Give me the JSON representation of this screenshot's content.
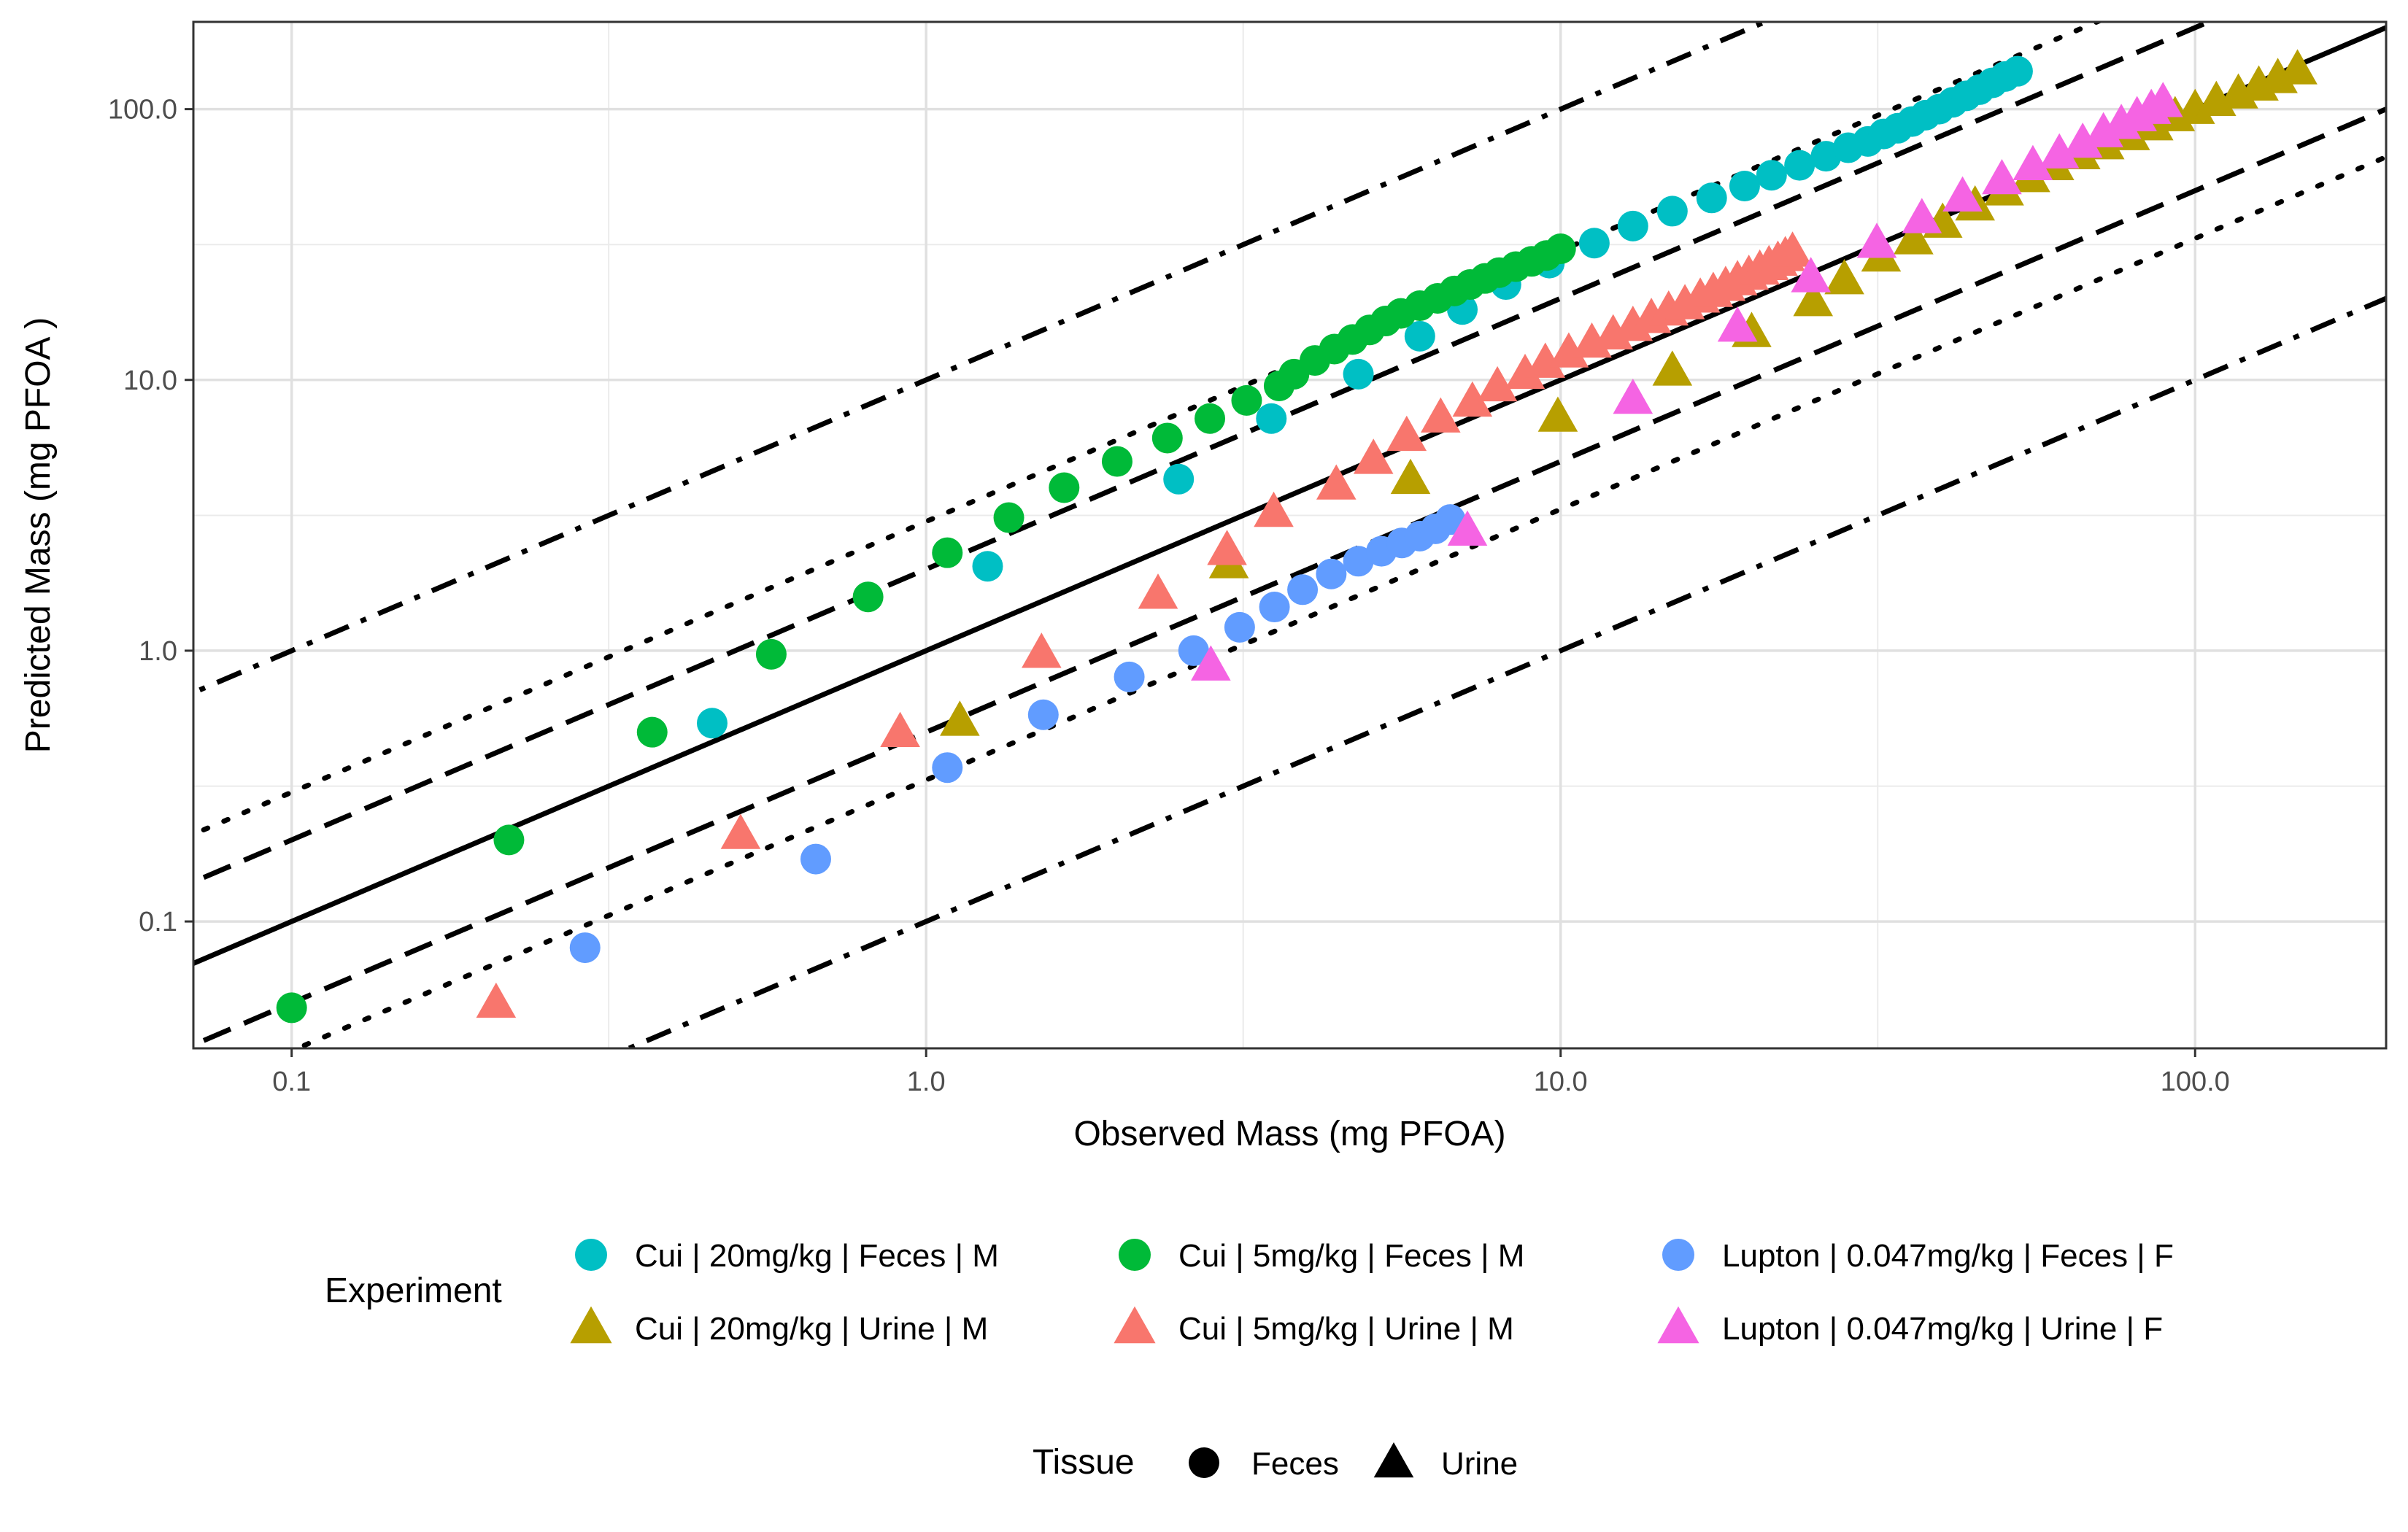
{
  "chart_data": {
    "type": "scatter",
    "xlabel": "Observed Mass (mg PFOA)",
    "ylabel": "Predicted Mass (mg PFOA )",
    "x_scale": "log",
    "y_scale": "log",
    "xlim": [
      0.07,
      200
    ],
    "ylim": [
      0.034,
      210
    ],
    "x_ticks": [
      0.1,
      1.0,
      10.0,
      100.0
    ],
    "x_tick_labels": [
      "0.1",
      "1.0",
      "10.0",
      "100.0"
    ],
    "y_ticks": [
      0.1,
      1.0,
      10.0,
      100.0
    ],
    "y_tick_labels": [
      "0.1",
      "1.0",
      "10.0",
      "100.0"
    ],
    "grid": true,
    "reference_lines": [
      {
        "ratio": 1,
        "style": "solid"
      },
      {
        "ratio": 2,
        "style": "dashed"
      },
      {
        "ratio": 0.5,
        "style": "dashed"
      },
      {
        "ratio": 3,
        "style": "dotted"
      },
      {
        "ratio": 0.333,
        "style": "dotted"
      },
      {
        "ratio": 10,
        "style": "dashdot"
      },
      {
        "ratio": 0.1,
        "style": "dashdot"
      }
    ],
    "legend": {
      "position": "bottom",
      "experiment_title": "Experiment",
      "experiment_items": [
        {
          "label": "Cui | 20mg/kg | Feces | M",
          "color": "#00BFC4",
          "shape": "circle"
        },
        {
          "label": "Cui | 5mg/kg | Feces | M",
          "color": "#00BA38",
          "shape": "circle"
        },
        {
          "label": "Lupton | 0.047mg/kg | Feces | F",
          "color": "#619CFF",
          "shape": "circle"
        },
        {
          "label": "Cui | 20mg/kg | Urine | M",
          "color": "#B79F00",
          "shape": "triangle"
        },
        {
          "label": "Cui | 5mg/kg | Urine | M",
          "color": "#F8766D",
          "shape": "triangle"
        },
        {
          "label": "Lupton | 0.047mg/kg | Urine | F",
          "color": "#F564E3",
          "shape": "triangle"
        }
      ],
      "tissue_title": "Tissue",
      "tissue_items": [
        {
          "label": "Feces",
          "shape": "circle"
        },
        {
          "label": "Urine",
          "shape": "triangle"
        }
      ]
    },
    "series": [
      {
        "name": "Cui | 20mg/kg | Feces | M",
        "color": "#00BFC4",
        "shape": "circle",
        "points": [
          [
            0.46,
            0.54
          ],
          [
            1.25,
            2.05
          ],
          [
            2.5,
            4.3
          ],
          [
            3.5,
            7.2
          ],
          [
            4.8,
            10.5
          ],
          [
            6.0,
            14.5
          ],
          [
            7.0,
            18.2
          ],
          [
            8.2,
            22.5
          ],
          [
            9.6,
            27
          ],
          [
            11.3,
            32
          ],
          [
            13.0,
            37
          ],
          [
            15.0,
            42
          ],
          [
            17.3,
            47
          ],
          [
            19.5,
            52
          ],
          [
            21.5,
            57
          ],
          [
            23.8,
            62
          ],
          [
            26.2,
            67
          ],
          [
            28.4,
            72
          ],
          [
            30.5,
            76
          ],
          [
            32.3,
            81
          ],
          [
            34.0,
            85
          ],
          [
            35.8,
            90
          ],
          [
            37.6,
            95
          ],
          [
            39.5,
            100
          ],
          [
            41.5,
            106
          ],
          [
            43.6,
            112
          ],
          [
            45.7,
            118
          ],
          [
            47.9,
            125
          ],
          [
            50.2,
            132
          ],
          [
            52.5,
            138
          ]
        ]
      },
      {
        "name": "Cui | 5mg/kg | Feces | M",
        "color": "#00BA38",
        "shape": "circle",
        "points": [
          [
            0.1,
            0.048
          ],
          [
            0.22,
            0.2
          ],
          [
            0.37,
            0.5
          ],
          [
            0.57,
            0.97
          ],
          [
            0.81,
            1.58
          ],
          [
            1.08,
            2.3
          ],
          [
            1.35,
            3.1
          ],
          [
            1.65,
            4.0
          ],
          [
            2.0,
            5.0
          ],
          [
            2.4,
            6.1
          ],
          [
            2.8,
            7.2
          ],
          [
            3.2,
            8.4
          ],
          [
            3.6,
            9.5
          ],
          [
            3.8,
            10.5
          ],
          [
            4.1,
            11.8
          ],
          [
            4.4,
            13
          ],
          [
            4.7,
            14.1
          ],
          [
            5.0,
            15.3
          ],
          [
            5.3,
            16.5
          ],
          [
            5.6,
            17.6
          ],
          [
            6.0,
            18.8
          ],
          [
            6.4,
            20
          ],
          [
            6.8,
            21.3
          ],
          [
            7.2,
            22.5
          ],
          [
            7.6,
            23.7
          ],
          [
            8.0,
            24.9
          ],
          [
            8.5,
            26.2
          ],
          [
            9.0,
            27.4
          ],
          [
            9.5,
            28.8
          ],
          [
            10.0,
            30.5
          ]
        ]
      },
      {
        "name": "Lupton | 0.047mg/kg | Feces | F",
        "color": "#619CFF",
        "shape": "circle",
        "points": [
          [
            0.29,
            0.08
          ],
          [
            0.67,
            0.17
          ],
          [
            1.08,
            0.37
          ],
          [
            1.53,
            0.58
          ],
          [
            2.09,
            0.8
          ],
          [
            2.64,
            1.0
          ],
          [
            3.12,
            1.22
          ],
          [
            3.54,
            1.45
          ],
          [
            3.92,
            1.68
          ],
          [
            4.35,
            1.92
          ],
          [
            4.8,
            2.14
          ],
          [
            5.22,
            2.33
          ],
          [
            5.62,
            2.5
          ],
          [
            6.0,
            2.65
          ],
          [
            6.35,
            2.82
          ],
          [
            6.7,
            3.05
          ]
        ]
      },
      {
        "name": "Cui | 20mg/kg | Urine | M",
        "color": "#B79F00",
        "shape": "triangle",
        "points": [
          [
            1.13,
            0.55
          ],
          [
            3.0,
            2.1
          ],
          [
            5.8,
            4.3
          ],
          [
            9.9,
            7.3
          ],
          [
            15.0,
            10.8
          ],
          [
            20.0,
            15
          ],
          [
            25.0,
            19.5
          ],
          [
            28.0,
            23.5
          ],
          [
            32.0,
            28.5
          ],
          [
            36.0,
            33
          ],
          [
            40.0,
            38
          ],
          [
            45.0,
            44
          ],
          [
            50.0,
            50
          ],
          [
            55.0,
            56
          ],
          [
            60.0,
            62
          ],
          [
            66.0,
            68
          ],
          [
            72.0,
            74
          ],
          [
            79.0,
            80
          ],
          [
            86.0,
            87
          ],
          [
            93.0,
            94
          ],
          [
            100,
            100
          ],
          [
            108,
            107
          ],
          [
            117,
            114
          ],
          [
            126,
            122
          ],
          [
            135,
            130
          ],
          [
            145,
            140
          ]
        ]
      },
      {
        "name": "Cui | 5mg/kg | Urine | M",
        "color": "#F8766D",
        "shape": "triangle",
        "points": [
          [
            0.21,
            0.05
          ],
          [
            0.51,
            0.21
          ],
          [
            0.91,
            0.5
          ],
          [
            1.52,
            0.98
          ],
          [
            2.32,
            1.62
          ],
          [
            2.98,
            2.35
          ],
          [
            3.53,
            3.25
          ],
          [
            4.43,
            4.1
          ],
          [
            5.07,
            5.1
          ],
          [
            5.72,
            6.2
          ],
          [
            6.47,
            7.25
          ],
          [
            7.26,
            8.3
          ],
          [
            7.95,
            9.45
          ],
          [
            8.79,
            10.5
          ],
          [
            9.46,
            11.55
          ],
          [
            10.3,
            12.6
          ],
          [
            11.2,
            13.7
          ],
          [
            12.1,
            14.7
          ],
          [
            13.0,
            15.8
          ],
          [
            13.9,
            16.9
          ],
          [
            14.8,
            18
          ],
          [
            15.7,
            19
          ],
          [
            16.6,
            20.1
          ],
          [
            17.4,
            21.1
          ],
          [
            18.2,
            22.2
          ],
          [
            19.0,
            23.3
          ],
          [
            19.8,
            24.4
          ],
          [
            20.6,
            25.5
          ],
          [
            21.3,
            26.5
          ],
          [
            22.0,
            27.5
          ],
          [
            22.6,
            28.6
          ],
          [
            23.2,
            29.7
          ]
        ]
      },
      {
        "name": "Lupton | 0.047mg/kg | Urine | F",
        "color": "#F564E3",
        "shape": "triangle",
        "points": [
          [
            2.81,
            0.88
          ],
          [
            7.13,
            2.77
          ],
          [
            13.0,
            8.5
          ],
          [
            19.0,
            15.7
          ],
          [
            24.8,
            23.9
          ],
          [
            31.5,
            32
          ],
          [
            37.1,
            39.5
          ],
          [
            43.0,
            47.5
          ],
          [
            49.6,
            55
          ],
          [
            55.5,
            62
          ],
          [
            61.1,
            68.5
          ],
          [
            66.5,
            75
          ],
          [
            71.7,
            82
          ],
          [
            76.5,
            88
          ],
          [
            81.0,
            94
          ],
          [
            85.3,
            100
          ],
          [
            89.0,
            106
          ]
        ]
      }
    ]
  }
}
